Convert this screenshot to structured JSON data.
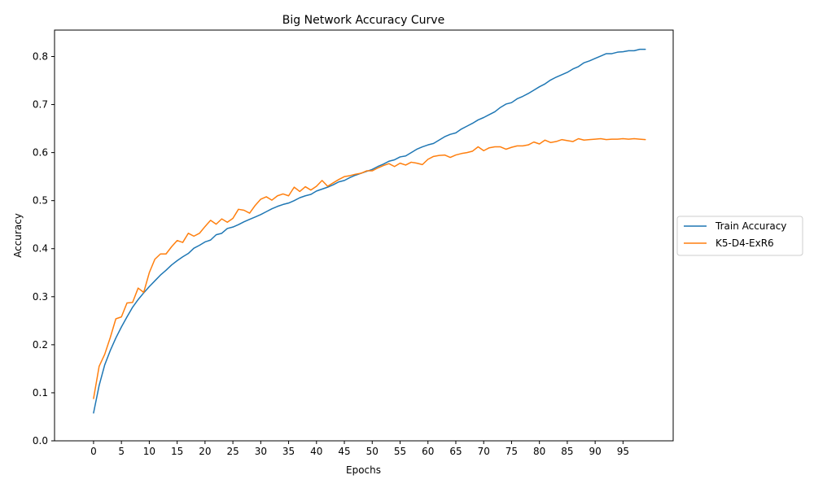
{
  "chart_data": {
    "type": "line",
    "title": "Big Network Accuracy Curve",
    "xlabel": "Epochs",
    "ylabel": "Accuracy",
    "xlim": [
      -7,
      104
    ],
    "ylim": [
      0.0,
      0.855
    ],
    "xticks": [
      0,
      5,
      10,
      15,
      20,
      25,
      30,
      35,
      40,
      45,
      50,
      55,
      60,
      65,
      70,
      75,
      80,
      85,
      90,
      95
    ],
    "yticks": [
      0.0,
      0.1,
      0.2,
      0.3,
      0.4,
      0.5,
      0.6,
      0.7,
      0.8
    ],
    "ytick_labels": [
      "0.0",
      "0.1",
      "0.2",
      "0.3",
      "0.4",
      "0.5",
      "0.6",
      "0.7",
      "0.8"
    ],
    "grid": false,
    "legend_position": "outside-right",
    "series": [
      {
        "name": "Train Accuracy",
        "color": "#1f77b4",
        "x": [
          0,
          1,
          2,
          3,
          4,
          5,
          6,
          7,
          8,
          9,
          10,
          11,
          12,
          13,
          14,
          15,
          16,
          17,
          18,
          19,
          20,
          21,
          22,
          23,
          24,
          25,
          26,
          27,
          28,
          29,
          30,
          31,
          32,
          33,
          34,
          35,
          36,
          37,
          38,
          39,
          40,
          41,
          42,
          43,
          44,
          45,
          46,
          47,
          48,
          49,
          50,
          51,
          52,
          53,
          54,
          55,
          56,
          57,
          58,
          59,
          60,
          61,
          62,
          63,
          64,
          65,
          66,
          67,
          68,
          69,
          70,
          71,
          72,
          73,
          74,
          75,
          76,
          77,
          78,
          79,
          80,
          81,
          82,
          83,
          84,
          85,
          86,
          87,
          88,
          89,
          90,
          91,
          92,
          93,
          94,
          95,
          96,
          97,
          98,
          99
        ],
        "values": [
          0.058,
          0.115,
          0.158,
          0.188,
          0.214,
          0.237,
          0.258,
          0.278,
          0.294,
          0.308,
          0.321,
          0.333,
          0.345,
          0.355,
          0.366,
          0.375,
          0.383,
          0.39,
          0.401,
          0.407,
          0.414,
          0.418,
          0.429,
          0.432,
          0.442,
          0.445,
          0.45,
          0.456,
          0.461,
          0.466,
          0.471,
          0.477,
          0.483,
          0.488,
          0.492,
          0.495,
          0.5,
          0.506,
          0.51,
          0.513,
          0.52,
          0.524,
          0.528,
          0.533,
          0.539,
          0.542,
          0.548,
          0.553,
          0.557,
          0.561,
          0.565,
          0.571,
          0.576,
          0.582,
          0.585,
          0.591,
          0.593,
          0.6,
          0.607,
          0.612,
          0.616,
          0.619,
          0.626,
          0.633,
          0.638,
          0.641,
          0.649,
          0.655,
          0.661,
          0.668,
          0.673,
          0.679,
          0.685,
          0.694,
          0.701,
          0.704,
          0.712,
          0.717,
          0.723,
          0.73,
          0.737,
          0.743,
          0.751,
          0.757,
          0.762,
          0.767,
          0.774,
          0.779,
          0.787,
          0.791,
          0.796,
          0.801,
          0.806,
          0.806,
          0.809,
          0.81,
          0.812,
          0.812,
          0.815,
          0.815
        ]
      },
      {
        "name": "K5-D4-ExR6",
        "color": "#ff7f0e",
        "x": [
          0,
          1,
          2,
          3,
          4,
          5,
          6,
          7,
          8,
          9,
          10,
          11,
          12,
          13,
          14,
          15,
          16,
          17,
          18,
          19,
          20,
          21,
          22,
          23,
          24,
          25,
          26,
          27,
          28,
          29,
          30,
          31,
          32,
          33,
          34,
          35,
          36,
          37,
          38,
          39,
          40,
          41,
          42,
          43,
          44,
          45,
          46,
          47,
          48,
          49,
          50,
          51,
          52,
          53,
          54,
          55,
          56,
          57,
          58,
          59,
          60,
          61,
          62,
          63,
          64,
          65,
          66,
          67,
          68,
          69,
          70,
          71,
          72,
          73,
          74,
          75,
          76,
          77,
          78,
          79,
          80,
          81,
          82,
          83,
          84,
          85,
          86,
          87,
          88,
          89,
          90,
          91,
          92,
          93,
          94,
          95,
          96,
          97,
          98,
          99
        ],
        "values": [
          0.088,
          0.155,
          0.18,
          0.215,
          0.254,
          0.258,
          0.287,
          0.288,
          0.318,
          0.309,
          0.35,
          0.378,
          0.389,
          0.389,
          0.404,
          0.417,
          0.413,
          0.432,
          0.426,
          0.432,
          0.446,
          0.459,
          0.451,
          0.462,
          0.455,
          0.463,
          0.482,
          0.48,
          0.474,
          0.49,
          0.503,
          0.508,
          0.501,
          0.51,
          0.514,
          0.51,
          0.528,
          0.519,
          0.529,
          0.522,
          0.53,
          0.542,
          0.53,
          0.537,
          0.544,
          0.55,
          0.552,
          0.555,
          0.557,
          0.562,
          0.562,
          0.568,
          0.573,
          0.577,
          0.571,
          0.578,
          0.574,
          0.58,
          0.578,
          0.575,
          0.586,
          0.592,
          0.594,
          0.595,
          0.59,
          0.595,
          0.598,
          0.6,
          0.603,
          0.612,
          0.604,
          0.61,
          0.612,
          0.612,
          0.607,
          0.611,
          0.614,
          0.614,
          0.616,
          0.622,
          0.618,
          0.626,
          0.621,
          0.623,
          0.627,
          0.625,
          0.623,
          0.629,
          0.626,
          0.627,
          0.628,
          0.629,
          0.627,
          0.628,
          0.628,
          0.629,
          0.628,
          0.629,
          0.628,
          0.627
        ]
      }
    ]
  }
}
